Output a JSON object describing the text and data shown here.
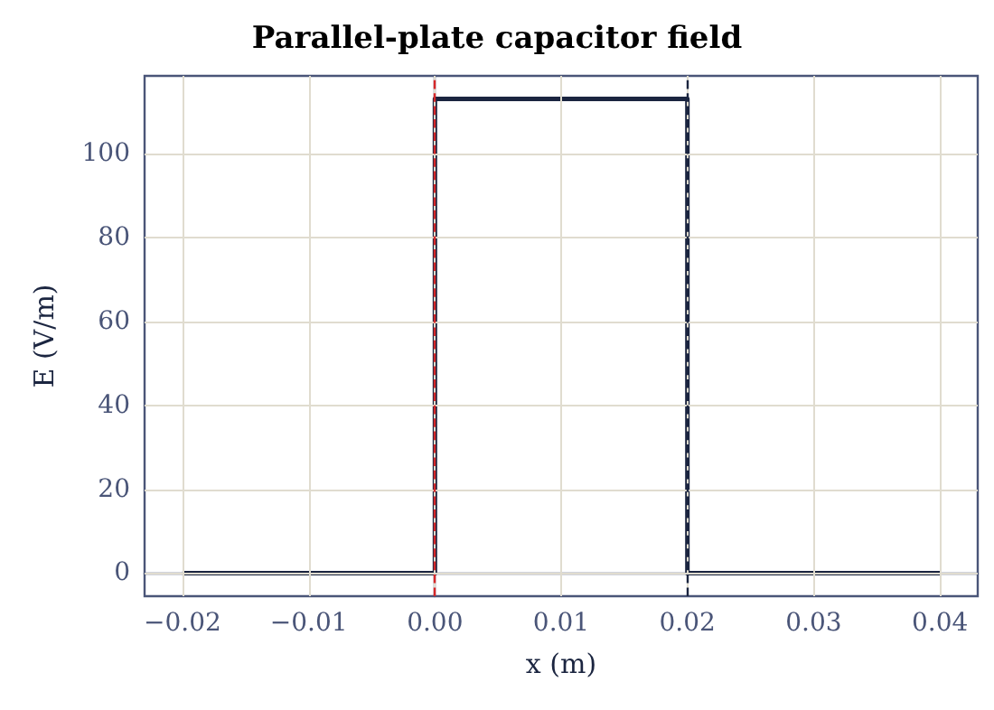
{
  "chart_data": {
    "type": "line",
    "title": "Parallel-plate capacitor field",
    "xlabel": "x (m)",
    "ylabel": "E (V/m)",
    "series": [
      {
        "x": [
          -0.02,
          0,
          0,
          0.02,
          0.02,
          0.04
        ],
        "values": [
          0,
          0,
          113,
          113,
          0,
          0
        ],
        "color": "#1b2540"
      }
    ],
    "xlim": [
      -0.023,
      0.043
    ],
    "ylim": [
      -5.5,
      118.5
    ],
    "xticks": [
      {
        "value": -0.02,
        "label": "−0.02"
      },
      {
        "value": -0.01,
        "label": "−0.01"
      },
      {
        "value": 0,
        "label": "0.00"
      },
      {
        "value": 0.01,
        "label": "0.01"
      },
      {
        "value": 0.02,
        "label": "0.02"
      },
      {
        "value": 0.03,
        "label": "0.03"
      },
      {
        "value": 0.04,
        "label": "0.04"
      }
    ],
    "yticks": [
      0,
      20,
      40,
      60,
      80,
      100
    ],
    "ref_lines": [
      {
        "axis": "x",
        "value": 0,
        "color": "#d62728",
        "line_style": "dashed"
      },
      {
        "axis": "x",
        "value": 0.02,
        "color": "#1b2540",
        "line_style": "dashed"
      }
    ],
    "grid": true,
    "line_style": "solid",
    "marker": "none"
  }
}
